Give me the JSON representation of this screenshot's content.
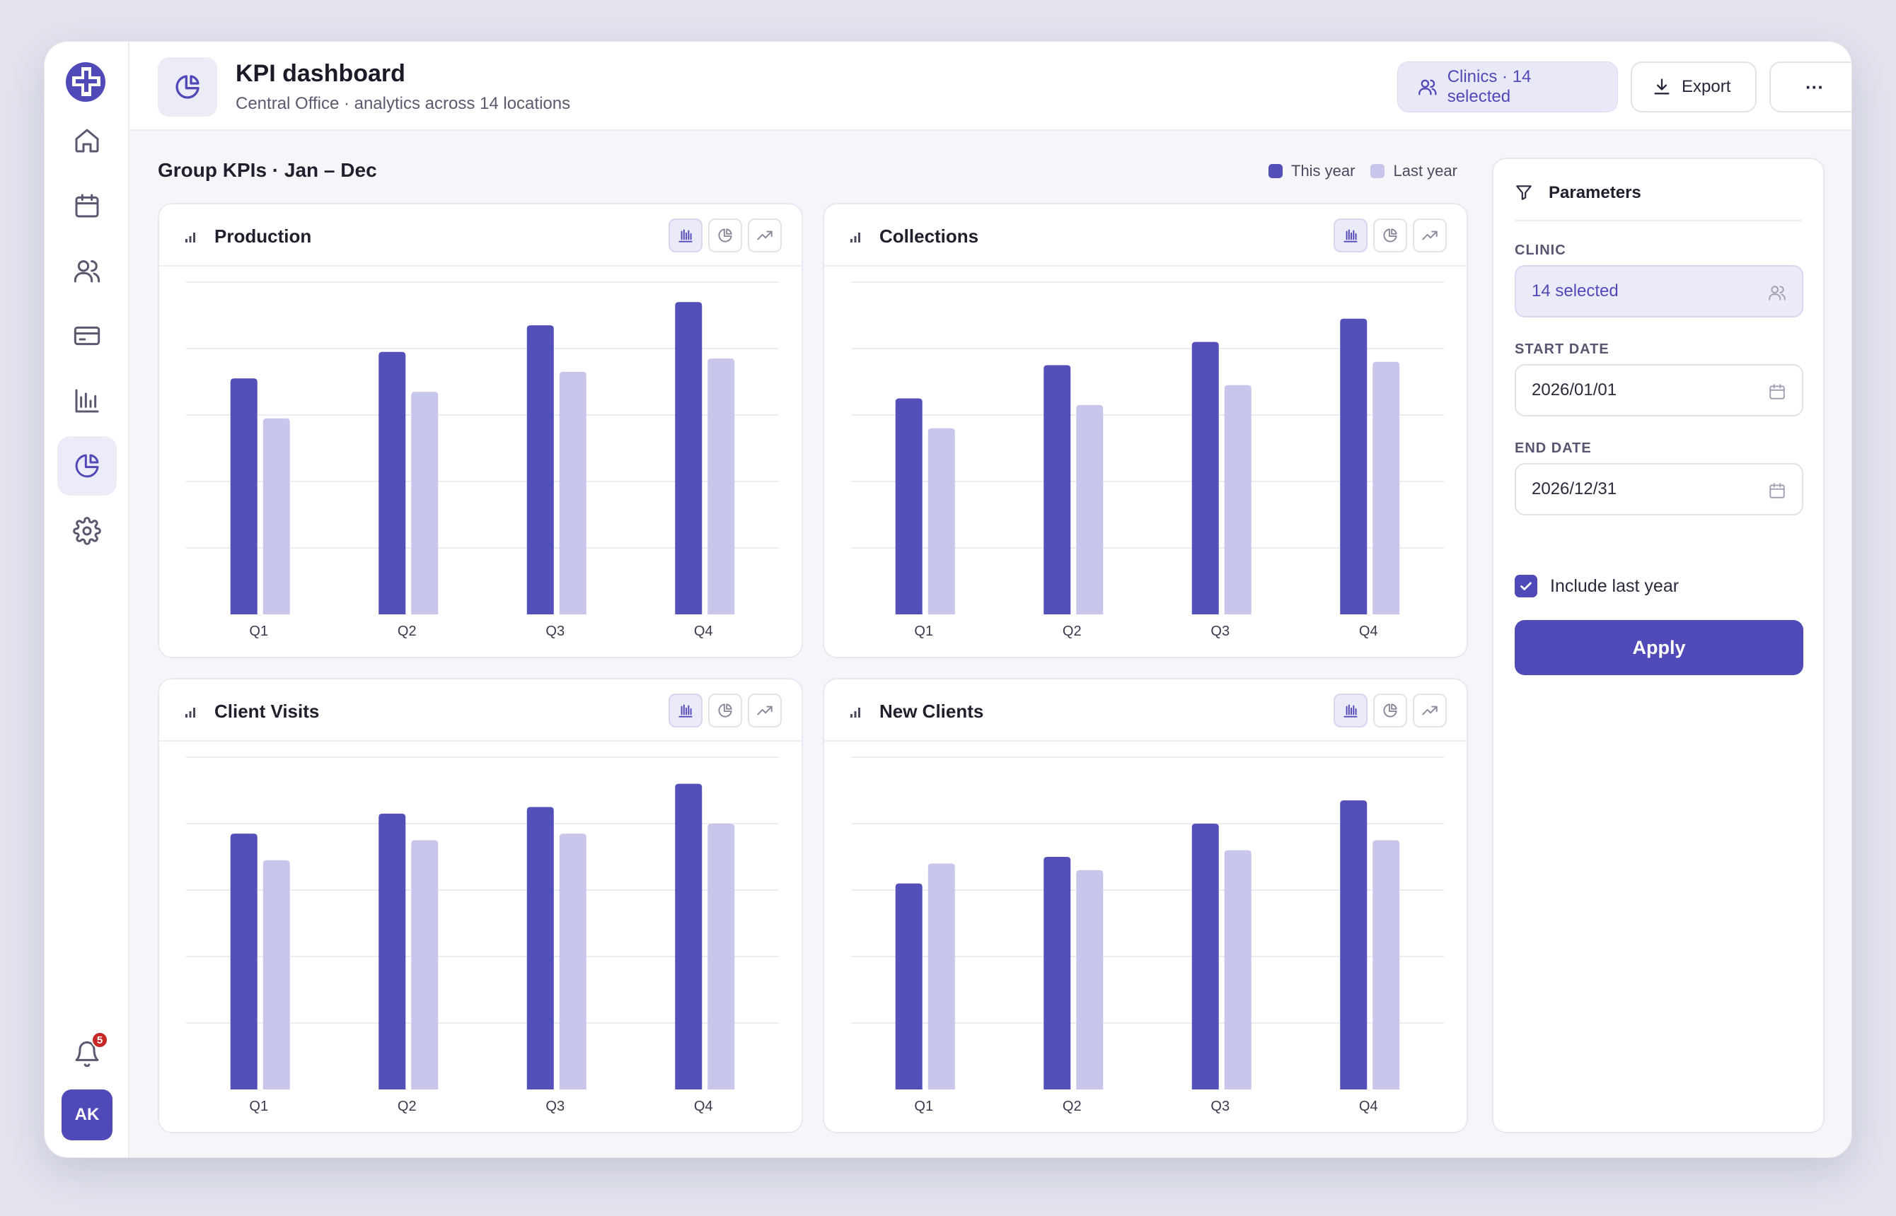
{
  "app": {
    "title": "KPI dashboard",
    "subtitle": "Central Office · analytics across 14 locations"
  },
  "sidebar": {
    "items": [
      {
        "name": "home",
        "icon": "home-icon"
      },
      {
        "name": "calendar",
        "icon": "calendar-icon"
      },
      {
        "name": "clients",
        "icon": "users-icon"
      },
      {
        "name": "billing",
        "icon": "credit-card-icon"
      },
      {
        "name": "reports",
        "icon": "bar-chart-icon"
      },
      {
        "name": "analytics",
        "icon": "pie-chart-icon",
        "active": true
      },
      {
        "name": "settings",
        "icon": "gear-icon"
      }
    ],
    "notifications_count": "5",
    "avatar_initials": "AK"
  },
  "header": {
    "clinics_label": "Clinics · 14 selected",
    "export_label": "Export",
    "more_label": "···"
  },
  "group": {
    "title": "Group KPIs · Jan – Dec",
    "legend_this_year": "This year",
    "legend_last_year": "Last year"
  },
  "colors": {
    "accent": "#4f4ab8",
    "this_year": "#5450b9",
    "last_year": "#c9c6ec"
  },
  "chart_data": [
    {
      "type": "bar",
      "title": "Production",
      "categories": [
        "Q1",
        "Q2",
        "Q3",
        "Q4"
      ],
      "series": [
        {
          "name": "This year",
          "values": [
            71,
            79,
            87,
            94
          ]
        },
        {
          "name": "Last year",
          "values": [
            59,
            67,
            73,
            77
          ]
        }
      ],
      "ylim": [
        0,
        100
      ],
      "grid": true
    },
    {
      "type": "bar",
      "title": "Collections",
      "categories": [
        "Q1",
        "Q2",
        "Q3",
        "Q4"
      ],
      "series": [
        {
          "name": "This year",
          "values": [
            65,
            75,
            82,
            89
          ]
        },
        {
          "name": "Last year",
          "values": [
            56,
            63,
            69,
            76
          ]
        }
      ],
      "ylim": [
        0,
        100
      ],
      "grid": true
    },
    {
      "type": "bar",
      "title": "Client Visits",
      "categories": [
        "Q1",
        "Q2",
        "Q3",
        "Q4"
      ],
      "series": [
        {
          "name": "This year",
          "values": [
            77,
            83,
            85,
            92
          ]
        },
        {
          "name": "Last year",
          "values": [
            69,
            75,
            77,
            80
          ]
        }
      ],
      "ylim": [
        0,
        100
      ],
      "grid": true
    },
    {
      "type": "bar",
      "title": "New Clients",
      "categories": [
        "Q1",
        "Q2",
        "Q3",
        "Q4"
      ],
      "series": [
        {
          "name": "This year",
          "values": [
            62,
            70,
            80,
            87
          ]
        },
        {
          "name": "Last year",
          "values": [
            68,
            66,
            72,
            75
          ]
        }
      ],
      "ylim": [
        0,
        100
      ],
      "grid": true
    }
  ],
  "params": {
    "title": "Parameters",
    "clinic_label": "CLINIC",
    "clinic_value": "14 selected",
    "start_label": "START DATE",
    "start_value": "2026/01/01",
    "end_label": "END DATE",
    "end_value": "2026/12/31",
    "include_last_year_label": "Include last year",
    "include_last_year": true,
    "apply_label": "Apply"
  }
}
